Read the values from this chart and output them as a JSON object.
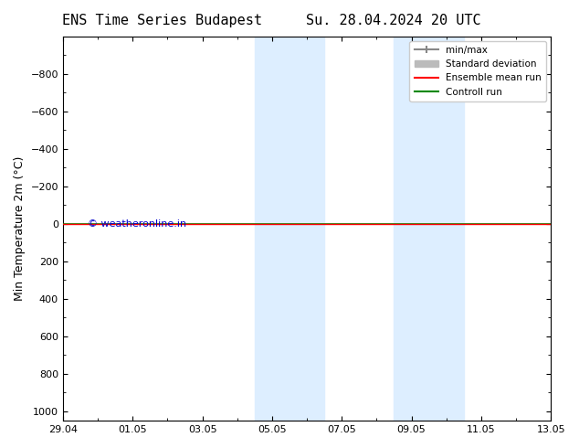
{
  "title_left": "ENS Time Series Budapest",
  "title_right": "Su. 28.04.2024 20 UTC",
  "ylabel": "Min Temperature 2m (°C)",
  "ylim": [
    -1000,
    1050
  ],
  "yticks": [
    -800,
    -600,
    -400,
    -200,
    0,
    200,
    400,
    600,
    800,
    1000
  ],
  "xtick_labels": [
    "29.04",
    "01.05",
    "03.05",
    "05.05",
    "07.05",
    "09.05",
    "11.05",
    "13.05"
  ],
  "xtick_positions": [
    0,
    2,
    4,
    6,
    8,
    10,
    12,
    14
  ],
  "shaded_bands": [
    {
      "x_start": 5.5,
      "x_end": 7.5
    },
    {
      "x_start": 9.5,
      "x_end": 11.5
    }
  ],
  "green_line_y": 0,
  "red_line_y": 0,
  "background_color": "#ffffff",
  "plot_bg_color": "#ffffff",
  "shade_color": "#ddeeff",
  "control_line_color": "#008800",
  "ensemble_mean_color": "#ff0000",
  "minmax_color": "#888888",
  "stddev_color": "#bbbbbb",
  "copyright_text": "© weatheronline.in",
  "copyright_color": "#0000cc",
  "legend_labels": [
    "min/max",
    "Standard deviation",
    "Ensemble mean run",
    "Controll run"
  ],
  "title_fontsize": 11,
  "axis_label_fontsize": 9,
  "tick_fontsize": 8
}
